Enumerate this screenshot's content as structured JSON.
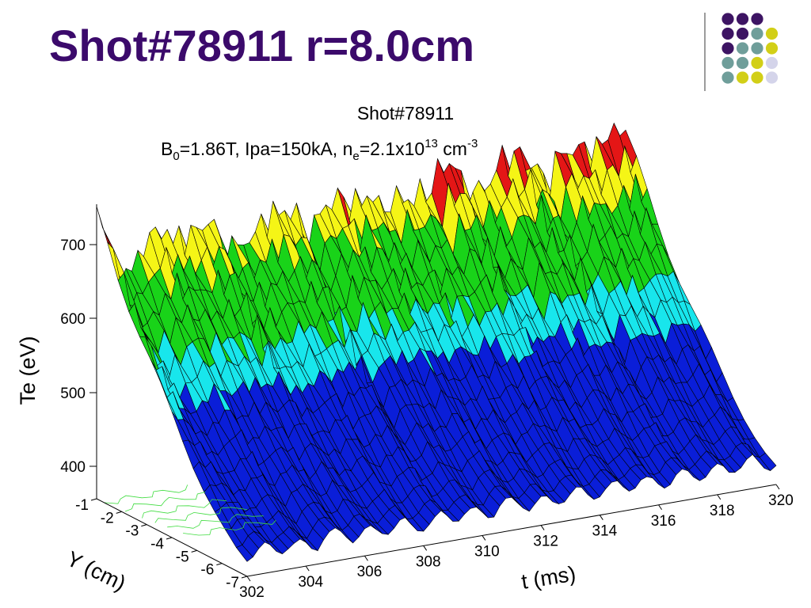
{
  "slide": {
    "title": "Shot#78911 r=8.0cm"
  },
  "decoration": {
    "dot_colors": {
      "purple": "#3d1463",
      "teal": "#6f9e9a",
      "olive": "#d2cf17",
      "lavender": "#d4d4ea"
    },
    "dot_grid": [
      [
        "purple",
        "purple",
        "purple",
        null
      ],
      [
        "purple",
        "purple",
        "teal",
        "olive"
      ],
      [
        "purple",
        "teal",
        "teal",
        "olive"
      ],
      [
        "teal",
        "teal",
        "olive",
        "lavender"
      ],
      [
        "teal",
        "olive",
        "olive",
        "lavender"
      ]
    ]
  },
  "chart_data": {
    "type": "surface",
    "title": "Shot#78911",
    "subtitle_parts": {
      "b_label": "B",
      "b_sub": "0",
      "b_value": "=1.86T, Ipa=150kA, n",
      "ne_sub": "e",
      "ne_value": "=2.1x10",
      "ne_exp": "13",
      "unit": " cm",
      "unit_exp": "-3"
    },
    "zlabel": "Te (eV)",
    "xlabel": "t (ms)",
    "ylabel": "Y (cm)",
    "x_ticks": [
      "302",
      "304",
      "306",
      "308",
      "310",
      "312",
      "314",
      "316",
      "318",
      "320"
    ],
    "y_ticks": [
      "-1",
      "-2",
      "-3",
      "-4",
      "-5",
      "-6",
      "-7"
    ],
    "z_ticks": [
      "400",
      "500",
      "600",
      "700"
    ],
    "xlim": [
      302,
      320
    ],
    "ylim": [
      -7,
      -1
    ],
    "zlim": [
      350,
      750
    ],
    "color_bands": [
      {
        "from": 350,
        "to": 520,
        "color": "#0a1ed8"
      },
      {
        "from": 520,
        "to": 565,
        "color": "#18e6ec"
      },
      {
        "from": 565,
        "to": 650,
        "color": "#19d319"
      },
      {
        "from": 650,
        "to": 690,
        "color": "#f5f516"
      },
      {
        "from": 690,
        "to": 760,
        "color": "#e41616"
      }
    ],
    "sawtooth": {
      "crash_times_ms": [
        302.3,
        306.1,
        309.0,
        311.6,
        314.4,
        317.2,
        319.8
      ],
      "front_edge_te_eV": [
        695,
        645,
        675,
        655,
        660,
        650,
        665,
        655,
        680,
        660,
        675,
        665,
        685,
        670,
        690,
        665,
        695,
        680,
        710
      ],
      "back_edge_te_eV": [
        380,
        382,
        378,
        385,
        380,
        383,
        379,
        384,
        381,
        386,
        380,
        384,
        382,
        385,
        381,
        383,
        382,
        386,
        380
      ]
    }
  }
}
